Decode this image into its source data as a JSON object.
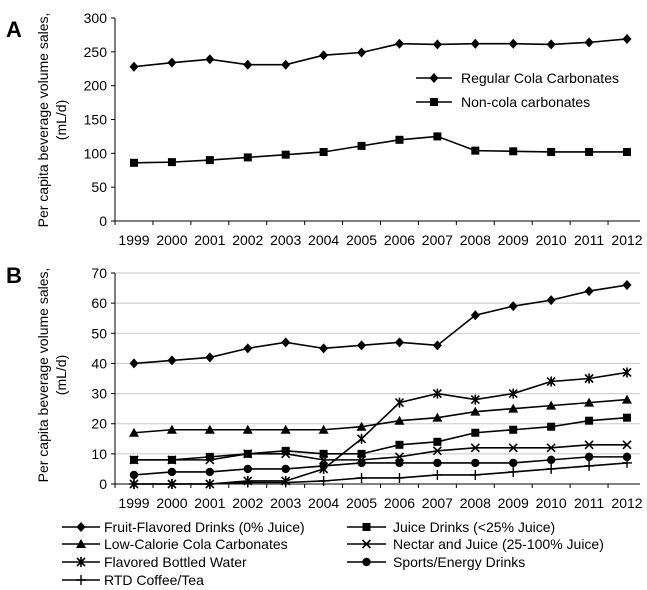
{
  "panels": [
    {
      "label": "A"
    },
    {
      "label": "B"
    }
  ],
  "chart_data": [
    {
      "type": "line",
      "ylabel_lines": [
        "Per capita beverage volume sales,",
        "(mL/d)"
      ],
      "ylim": [
        0,
        300
      ],
      "yticks": [
        0,
        50,
        100,
        150,
        200,
        250,
        300
      ],
      "grid": false,
      "legend_position": "right",
      "x": [
        "1999",
        "2000",
        "2001",
        "2002",
        "2003",
        "2004",
        "2005",
        "2006",
        "2007",
        "2008",
        "2009",
        "2010",
        "2011",
        "2012"
      ],
      "series": [
        {
          "name": "Regular Cola Carbonates",
          "marker": "diamond",
          "values": [
            228,
            234,
            239,
            231,
            231,
            245,
            249,
            262,
            261,
            262,
            262,
            261,
            264,
            269
          ]
        },
        {
          "name": "Non-cola carbonates",
          "marker": "square",
          "values": [
            86,
            87,
            90,
            94,
            98,
            102,
            111,
            120,
            125,
            104,
            103,
            102,
            102,
            102
          ]
        }
      ]
    },
    {
      "type": "line",
      "ylabel_lines": [
        "Per capita beverage volume sales,",
        "(mL/d)"
      ],
      "ylim": [
        0,
        70
      ],
      "yticks": [
        0,
        10,
        20,
        30,
        40,
        50,
        60,
        70
      ],
      "grid": true,
      "legend_position": "bottom",
      "x": [
        "1999",
        "2000",
        "2001",
        "2002",
        "2003",
        "2004",
        "2005",
        "2006",
        "2007",
        "2008",
        "2009",
        "2010",
        "2011",
        "2012"
      ],
      "series": [
        {
          "name": "Fruit-Flavored Drinks (0% Juice)",
          "marker": "diamond",
          "values": [
            40,
            41,
            42,
            45,
            47,
            45,
            46,
            47,
            46,
            56,
            59,
            61,
            64,
            66
          ]
        },
        {
          "name": "Juice Drinks (<25% Juice)",
          "marker": "square",
          "values": [
            8,
            8,
            9,
            10,
            11,
            10,
            10,
            13,
            14,
            17,
            18,
            19,
            21,
            22
          ]
        },
        {
          "name": "Low-Calorie Cola Carbonates",
          "marker": "triangle",
          "values": [
            17,
            18,
            18,
            18,
            18,
            18,
            19,
            21,
            22,
            24,
            25,
            26,
            27,
            28
          ]
        },
        {
          "name": "Nectar and Juice (25-100% Juice)",
          "marker": "x",
          "values": [
            8,
            8,
            8,
            10,
            10,
            8,
            8,
            9,
            11,
            12,
            12,
            12,
            13,
            13
          ]
        },
        {
          "name": "Flavored Bottled Water",
          "marker": "star",
          "values": [
            0,
            0,
            0,
            1,
            1,
            5,
            15,
            27,
            30,
            28,
            30,
            34,
            35,
            37
          ]
        },
        {
          "name": "Sports/Energy Drinks",
          "marker": "circle",
          "values": [
            3,
            4,
            4,
            5,
            5,
            6,
            7,
            7,
            7,
            7,
            7,
            8,
            9,
            9
          ]
        },
        {
          "name": "RTD Coffee/Tea",
          "marker": "plus",
          "values": [
            0,
            0,
            0,
            0.5,
            0.5,
            1,
            2,
            2,
            3,
            3,
            4,
            5,
            6,
            7
          ]
        }
      ]
    }
  ]
}
